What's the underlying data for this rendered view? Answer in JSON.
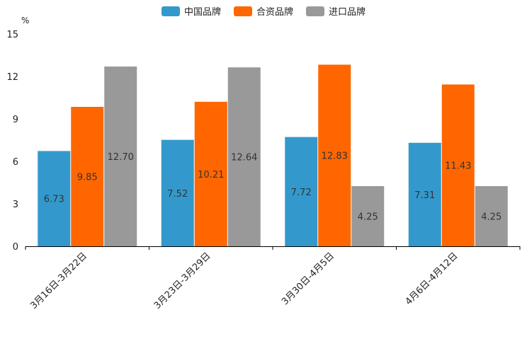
{
  "chart_data": {
    "type": "bar",
    "title": "",
    "unit": "%",
    "xlabel": "",
    "ylabel": "%",
    "ylim": [
      0,
      15
    ],
    "yticks": [
      0,
      3,
      6,
      9,
      12,
      15
    ],
    "categories": [
      "3月16日-3月22日",
      "3月23日-3月29日",
      "3月30日-4月5日",
      "4月6日-4月12日"
    ],
    "series": [
      {
        "name": "中国品牌",
        "color": "#3399cc",
        "values": [
          6.73,
          7.52,
          7.72,
          7.31
        ],
        "labels": [
          "6.73",
          "7.52",
          "7.72",
          "7.31"
        ]
      },
      {
        "name": "合资品牌",
        "color": "#ff6600",
        "values": [
          9.85,
          10.21,
          12.83,
          11.43
        ],
        "labels": [
          "9.85",
          "10.21",
          "12.83",
          "11.43"
        ]
      },
      {
        "name": "进口品牌",
        "color": "#999999",
        "values": [
          12.7,
          12.64,
          4.25,
          4.25
        ],
        "labels": [
          "12.70",
          "12.64",
          "4.25",
          "4.25"
        ]
      }
    ],
    "legend_position": "top-center",
    "grid": false
  }
}
